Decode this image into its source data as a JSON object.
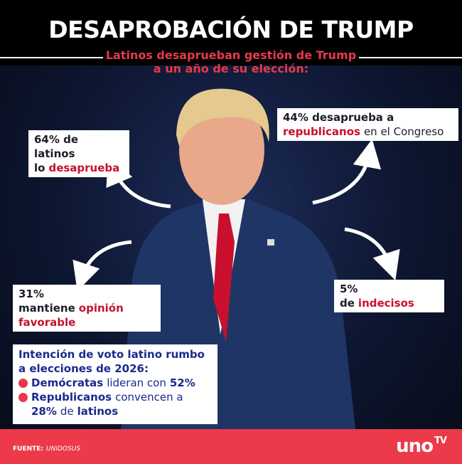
{
  "header": {
    "title": "DESAPROBACIÓN DE TRUMP",
    "subtitle_lines": [
      "Latinos desaprueban gestión de Trump",
      "a un año de su elección:"
    ]
  },
  "callouts": [
    {
      "lines": [
        [
          {
            "text": "64% de latinos"
          }
        ],
        [
          {
            "text": "lo"
          },
          {
            "text": "desaprueba",
            "highlight": true
          }
        ]
      ]
    },
    {
      "lines": [
        [
          {
            "text": "44% desaprueba a"
          }
        ],
        [
          {
            "text": "republicanos",
            "highlight": true
          },
          {
            "text": "en el Congreso",
            "light": true
          }
        ]
      ]
    },
    {
      "lines": [
        [
          {
            "text": "31% mantiene"
          },
          {
            "text": "opinión",
            "highlight": true
          }
        ],
        [
          {
            "text": "favorable",
            "highlight": true
          }
        ]
      ]
    },
    {
      "lines": [
        [
          {
            "text": "5% de"
          },
          {
            "text": "indecisos",
            "highlight": true
          }
        ]
      ]
    }
  ],
  "vote_box": {
    "title_lines": [
      "Intención de voto latino rumbo",
      "a elecciones de 2026:"
    ],
    "items": [
      {
        "lines": [
          [
            {
              "text": "Demócratas",
              "highlight": true
            },
            {
              "text": "lideran con",
              "light": true
            },
            {
              "text": "52%"
            }
          ]
        ]
      },
      {
        "lines": [
          [
            {
              "text": "Republicanos",
              "highlight": true
            },
            {
              "text": "convencen a",
              "light": true
            }
          ],
          [
            {
              "text": "28%"
            },
            {
              "text": "de",
              "light": true
            },
            {
              "text": "latinos"
            }
          ]
        ]
      }
    ]
  },
  "footer": {
    "source_label": "FUENTE:",
    "source": "UNIDOSUS",
    "logo": {
      "main": "uno",
      "suffix": "TV"
    }
  }
}
